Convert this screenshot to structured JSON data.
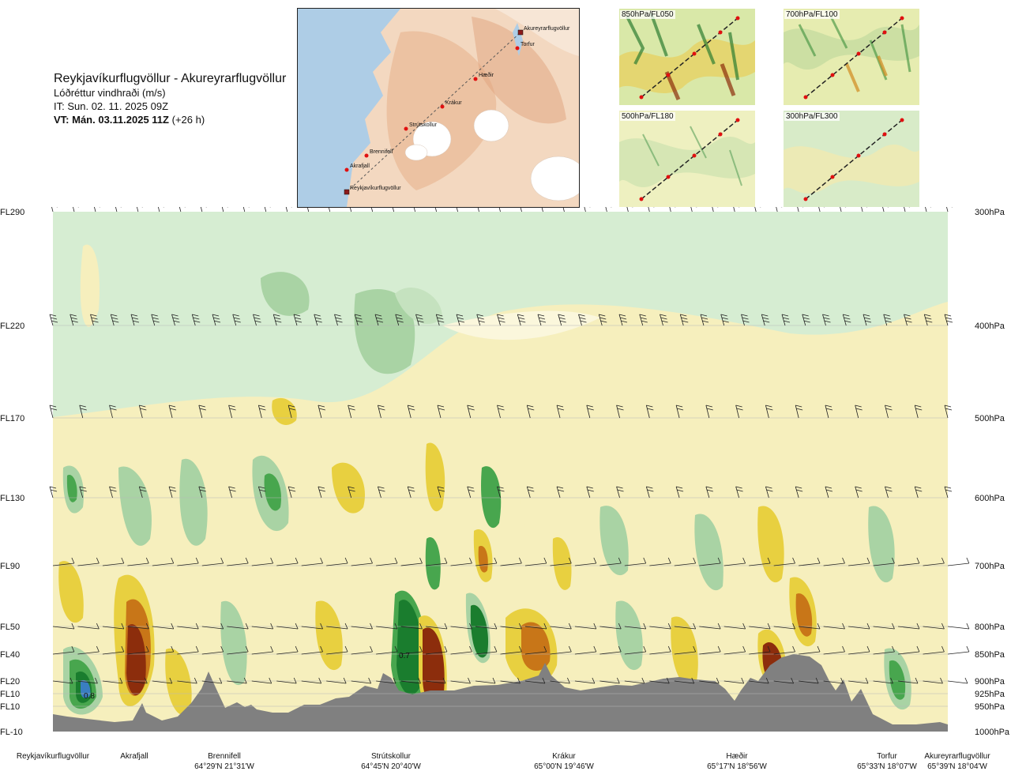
{
  "header": {
    "route": "Reykjavíkurflugvöllur - Akureyrarflugvöllur",
    "parameter": "Lóðréttur vindhraði (m/s)",
    "it_line": "IT: Sun. 02. 11. 2025 09Z",
    "vt_label": "VT: Mán. 03.11.2025 11Z",
    "vt_offset": "(+26 h)"
  },
  "map": {
    "waypoints": [
      "Reykjavíkurflugvöllur",
      "Akrafjall",
      "Brennifell",
      "Strútskollur",
      "Krákur",
      "Hæðir",
      "Torfur",
      "Akureyrarflugvöllur"
    ]
  },
  "insets": [
    {
      "label": "850hPa/FL050"
    },
    {
      "label": "700hPa/FL100"
    },
    {
      "label": "500hPa/FL180"
    },
    {
      "label": "300hPa/FL300"
    }
  ],
  "colors": {
    "strong_down": "#1a7d2e",
    "down": "#48a64e",
    "weak_down": "#a8d5a4",
    "near_zero": "#d1ecd0",
    "weak_up": "#f4eaa6",
    "up": "#e8c730",
    "strong_up": "#c87618",
    "very_strong_up": "#8c2d0c",
    "terrain": "#808080"
  },
  "chart_data": {
    "type": "heatmap",
    "flight_levels": [
      "FL290",
      "FL220",
      "FL170",
      "FL130",
      "FL90",
      "FL50",
      "FL40",
      "FL20",
      "FL10",
      "FL10",
      "FL-10"
    ],
    "pressure_levels": [
      "300hPa",
      "400hPa",
      "500hPa",
      "600hPa",
      "700hPa",
      "800hPa",
      "850hPa",
      "900hPa",
      "925hPa",
      "950hPa",
      "1000hPa"
    ],
    "route_points": [
      {
        "name": "Reykjavíkurflugvöllur",
        "coord": ""
      },
      {
        "name": "Akrafjall",
        "coord": ""
      },
      {
        "name": "Brennifell",
        "coord": "64°29'N 21°31'W"
      },
      {
        "name": "Strútskollur",
        "coord": "64°45'N 20°40'W"
      },
      {
        "name": "Krákur",
        "coord": "65°00'N 19°46'W"
      },
      {
        "name": "Hæðir",
        "coord": "65°17'N 18°56'W"
      },
      {
        "name": "Torfur",
        "coord": "65°33'N 18°07'W"
      },
      {
        "name": "Akureyrarflugvöllur",
        "coord": "65°39'N 18°04'W"
      }
    ],
    "annotations": [
      "0.8",
      "0.7"
    ]
  }
}
